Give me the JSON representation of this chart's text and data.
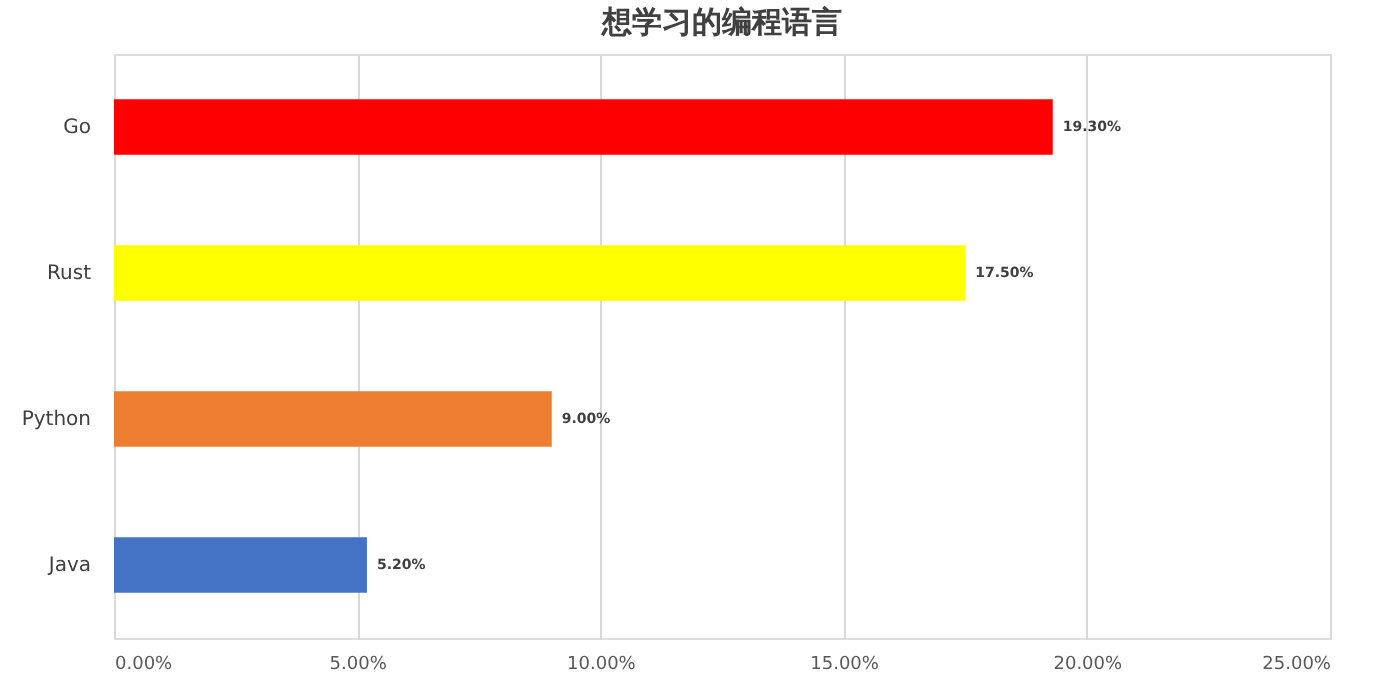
{
  "chart_data": {
    "type": "bar",
    "orientation": "horizontal",
    "title": "想学习的编程语言",
    "categories": [
      "Go",
      "Rust",
      "Python",
      "Java"
    ],
    "values": [
      19.3,
      17.5,
      9.0,
      5.2
    ],
    "colors": [
      "#ff0000",
      "#ffff00",
      "#ed7d31",
      "#4472c4"
    ],
    "value_labels": [
      "19.30%",
      "17.50%",
      "9.00%",
      "5.20%"
    ],
    "xlim": [
      0,
      25
    ],
    "xticks": [
      {
        "value": 0,
        "label": "0.00%"
      },
      {
        "value": 5,
        "label": "5.00%"
      },
      {
        "value": 10,
        "label": "10.00%"
      },
      {
        "value": 15,
        "label": "15.00%"
      },
      {
        "value": 20,
        "label": "20.00%"
      },
      {
        "value": 25,
        "label": "25.00%"
      }
    ],
    "grid": "x"
  }
}
